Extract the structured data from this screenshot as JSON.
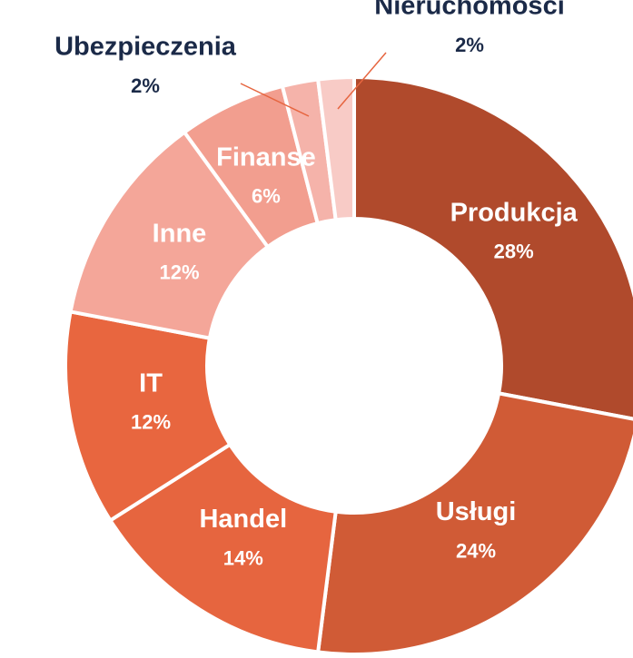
{
  "chart_data": {
    "type": "donut",
    "categories": [
      "Produkcja",
      "Usługi",
      "Handel",
      "IT",
      "Inne",
      "Finanse",
      "Ubezpieczenia",
      "Nieruchomości"
    ],
    "values": [
      28,
      24,
      14,
      12,
      12,
      6,
      2,
      2
    ],
    "value_labels": [
      "28%",
      "24%",
      "14%",
      "12%",
      "12%",
      "6%",
      "2%",
      "2%"
    ],
    "colors": [
      "#b04a2c",
      "#d05b36",
      "#e6653f",
      "#e8663f",
      "#f4a699",
      "#f29e8f",
      "#f5b3aa",
      "#f8cbc6"
    ]
  }
}
